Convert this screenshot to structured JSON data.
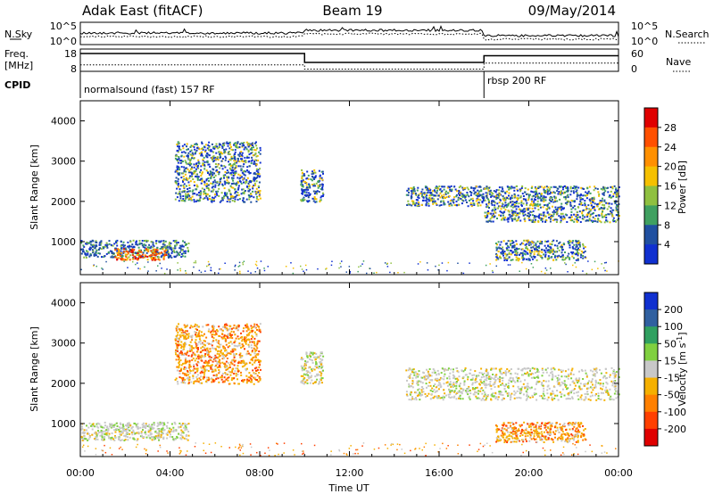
{
  "header": {
    "station": "Adak East (fitACF)",
    "beam": "Beam 19",
    "date": "09/May/2014"
  },
  "left_labels": {
    "nsky": "N.Sky",
    "freq": "Freq.",
    "mhz": "[MHz]",
    "cpid": "CPID"
  },
  "right_labels": {
    "nsearch": "N.Search",
    "nave": "Nave"
  },
  "noise_axis": {
    "top": "10^5",
    "bottom": "10^0"
  },
  "freq_axis": {
    "top": "18",
    "bottom": "8"
  },
  "nave_axis": {
    "top": "60",
    "bottom": "0"
  },
  "cpid": {
    "seg1": "normalsound (fast) 157 RF",
    "seg2": "rbsp 200 RF"
  },
  "y_title": "Slant Range [km]",
  "x_title": "Time UT",
  "power_colorbar": {
    "label": "Power [dB]",
    "ticks": [
      "28",
      "24",
      "20",
      "16",
      "12",
      "8",
      "4"
    ],
    "colors": [
      "#e00000",
      "#ff5000",
      "#ff9000",
      "#f5c000",
      "#8fc040",
      "#40a060",
      "#2050a0",
      "#1030d0"
    ]
  },
  "velocity_colorbar": {
    "label": "Velocity [m s^-1]",
    "label_main": "Velocity [m s",
    "label_sup": "-1",
    "label_end": "]",
    "ticks": [
      "200",
      "100",
      "50",
      "15",
      "-15",
      "-50",
      "-100",
      "-200"
    ],
    "colors": [
      "#1030d0",
      "#3060a0",
      "#30a060",
      "#80d040",
      "#c8c8c8",
      "#f5b000",
      "#ff8000",
      "#ff4000",
      "#e00000"
    ]
  },
  "chart_data": {
    "type": "heatmap",
    "title": "Adak East (fitACF) Beam 19 09/May/2014",
    "xlabel": "Time UT",
    "ylabel": "Slant Range [km]",
    "x_ticks": [
      "00:00",
      "04:00",
      "08:00",
      "12:00",
      "16:00",
      "20:00",
      "00:00"
    ],
    "xlim_hours": [
      0,
      24
    ],
    "y_ticks": [
      1000,
      2000,
      3000,
      4000
    ],
    "ylim_km": [
      180,
      4500
    ],
    "cpid_change_hour": 18,
    "freq_mhz": {
      "segments": [
        {
          "start": 0,
          "end": 10,
          "value": 16
        },
        {
          "start": 10,
          "end": 18,
          "value": 12
        },
        {
          "start": 18,
          "end": 24,
          "value": 15
        }
      ]
    },
    "power_regions": [
      {
        "t0": 0.0,
        "t1": 4.8,
        "r0": 620,
        "r1": 1050,
        "level": "low-mid"
      },
      {
        "t0": 1.5,
        "t1": 3.8,
        "r0": 560,
        "r1": 840,
        "level": "high"
      },
      {
        "t0": 4.2,
        "t1": 8.0,
        "r0": 2000,
        "r1": 3500,
        "level": "mid"
      },
      {
        "t0": 9.8,
        "t1": 10.8,
        "r0": 2000,
        "r1": 2800,
        "level": "mid"
      },
      {
        "t0": 14.5,
        "t1": 18.0,
        "r0": 1900,
        "r1": 2400,
        "level": "mid"
      },
      {
        "t0": 18.0,
        "t1": 24.0,
        "r0": 1500,
        "r1": 2400,
        "level": "mid"
      },
      {
        "t0": 18.5,
        "t1": 22.5,
        "r0": 550,
        "r1": 1050,
        "level": "mid"
      }
    ],
    "velocity_regions": [
      {
        "t0": 0.0,
        "t1": 4.8,
        "r0": 600,
        "r1": 1050,
        "velocity": "near-zero"
      },
      {
        "t0": 4.2,
        "t1": 8.0,
        "r0": 2000,
        "r1": 3500,
        "velocity": "negative"
      },
      {
        "t0": 9.8,
        "t1": 10.8,
        "r0": 2000,
        "r1": 2800,
        "velocity": "near-zero"
      },
      {
        "t0": 14.5,
        "t1": 24.0,
        "r0": 1600,
        "r1": 2400,
        "velocity": "near-zero"
      },
      {
        "t0": 18.5,
        "t1": 22.5,
        "r0": 550,
        "r1": 1050,
        "velocity": "negative"
      }
    ]
  }
}
